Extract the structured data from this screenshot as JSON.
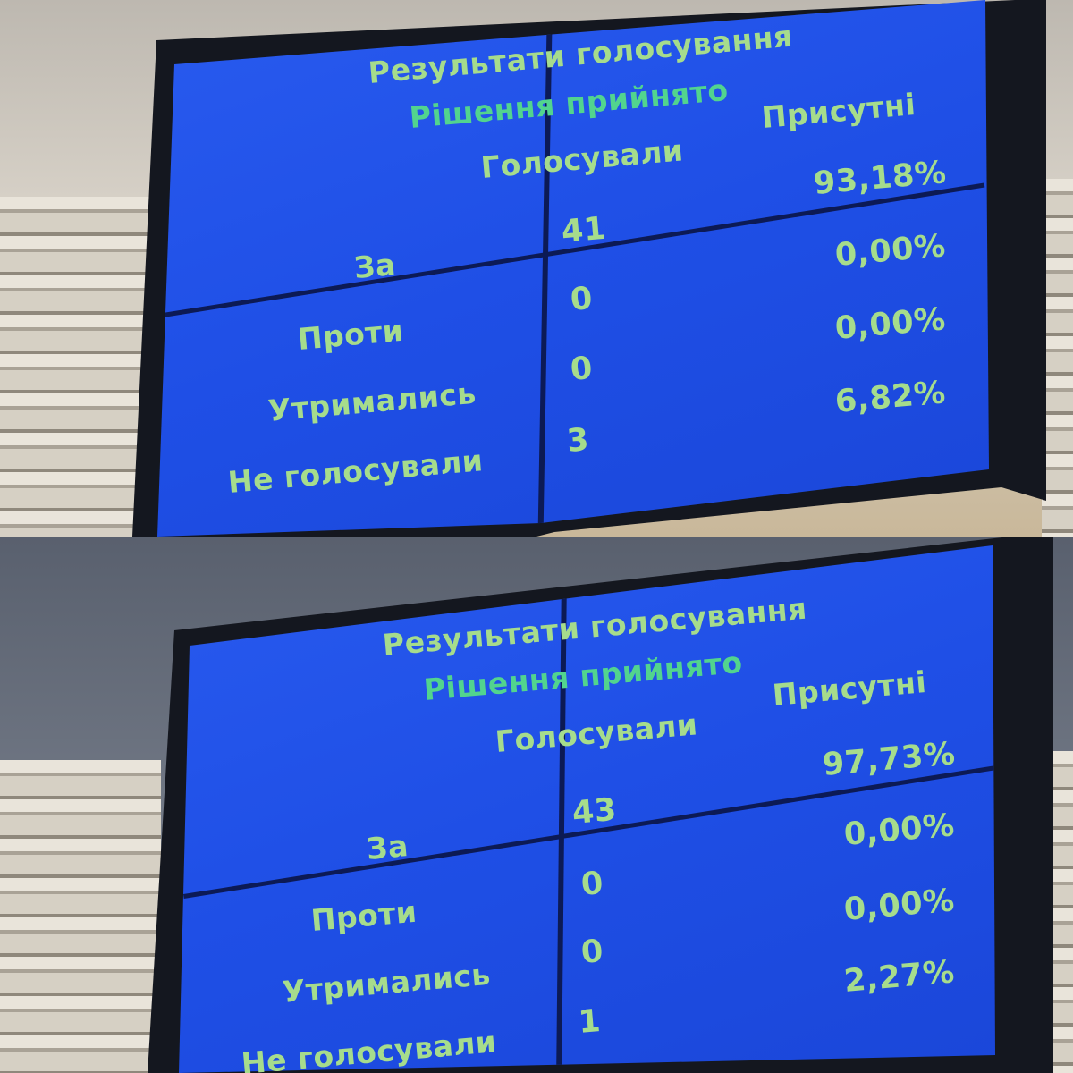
{
  "colors": {
    "screen": "#1f4fe6",
    "text": "#a6dc8c",
    "decision": "#52d48e"
  },
  "screens": [
    {
      "title": "Результати голосування",
      "decision": "Рішення прийнято",
      "present_label": "Присутні",
      "voted_label": "Голосували",
      "rows": [
        {
          "label": "За",
          "count": "41",
          "percent": "93,18%"
        },
        {
          "label": "Проти",
          "count": "0",
          "percent": "0,00%"
        },
        {
          "label": "Утримались",
          "count": "0",
          "percent": "0,00%"
        },
        {
          "label": "Не голосували",
          "count": "3",
          "percent": "6,82%"
        }
      ]
    },
    {
      "title": "Результати голосування",
      "decision": "Рішення прийнято",
      "present_label": "Присутні",
      "voted_label": "Голосували",
      "rows": [
        {
          "label": "За",
          "count": "43",
          "percent": "97,73%"
        },
        {
          "label": "Проти",
          "count": "0",
          "percent": "0,00%"
        },
        {
          "label": "Утримались",
          "count": "0",
          "percent": "0,00%"
        },
        {
          "label": "Не голосували",
          "count": "1",
          "percent": "2,27%"
        }
      ]
    }
  ]
}
